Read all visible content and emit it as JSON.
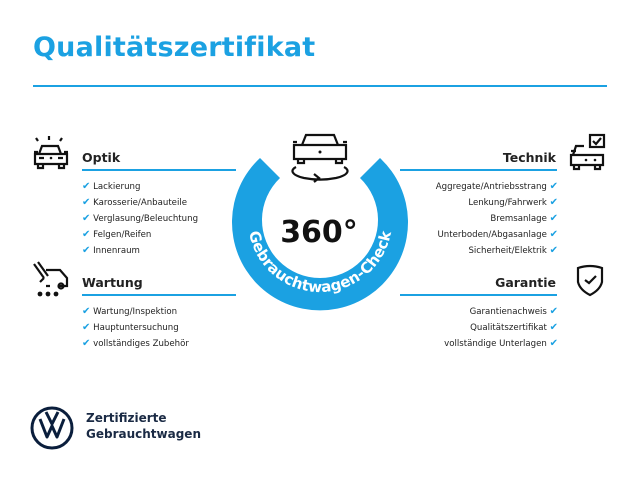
{
  "title": "Qualitätszertifikat",
  "accent": "#1ba1e2",
  "badge": {
    "value": "360°",
    "ring_text": "Gebrauchtwagen-Check",
    "icon": "car-rotate-icon"
  },
  "sections": {
    "optik": {
      "title": "Optik",
      "icon": "car-lights-icon",
      "items": [
        "Lackierung",
        "Karosserie/Anbauteile",
        "Verglasung/Beleuchtung",
        "Felgen/Reifen",
        "Innenraum"
      ]
    },
    "wartung": {
      "title": "Wartung",
      "icon": "service-van-icon",
      "items": [
        "Wartung/Inspektion",
        "Hauptuntersuchung",
        "vollständiges Zubehör"
      ]
    },
    "technik": {
      "title": "Technik",
      "icon": "car-checkbox-icon",
      "items": [
        "Aggregate/Antriebsstrang",
        "Lenkung/Fahrwerk",
        "Bremsanlage",
        "Unterboden/Abgasanlage",
        "Sicherheit/Elektrik"
      ]
    },
    "garantie": {
      "title": "Garantie",
      "icon": "shield-check-icon",
      "items": [
        "Garantienachweis",
        "Qualitätszertifikat",
        "vollständige Unterlagen"
      ]
    }
  },
  "brand": {
    "line1": "Zertifizierte",
    "line2": "Gebrauchtwagen",
    "logo": "vw-logo"
  },
  "check": "✔"
}
